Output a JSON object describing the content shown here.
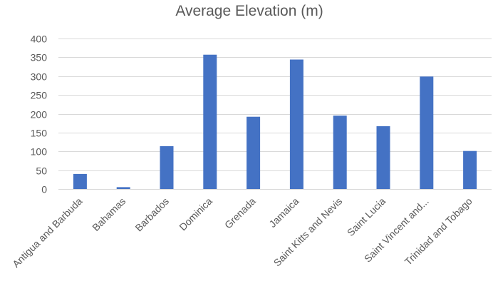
{
  "chart_data": {
    "type": "bar",
    "title": "Average Elevation (m)",
    "xlabel": "",
    "ylabel": "",
    "categories": [
      "Antigua and Barbuda",
      "Bahamas",
      "Barbados",
      "Dominica",
      "Grenada",
      "Jamaica",
      "Saint Kitts and Nevis",
      "Saint Lucia",
      "Saint Vincent and...",
      "Trinidad and Tobago"
    ],
    "values": [
      40,
      5,
      114,
      357,
      192,
      344,
      195,
      167,
      299,
      101
    ],
    "ylim": [
      0,
      400
    ],
    "yticks": [
      0,
      50,
      100,
      150,
      200,
      250,
      300,
      350,
      400
    ],
    "grid": true,
    "legend": "none",
    "bar_color": "#4472c4"
  }
}
